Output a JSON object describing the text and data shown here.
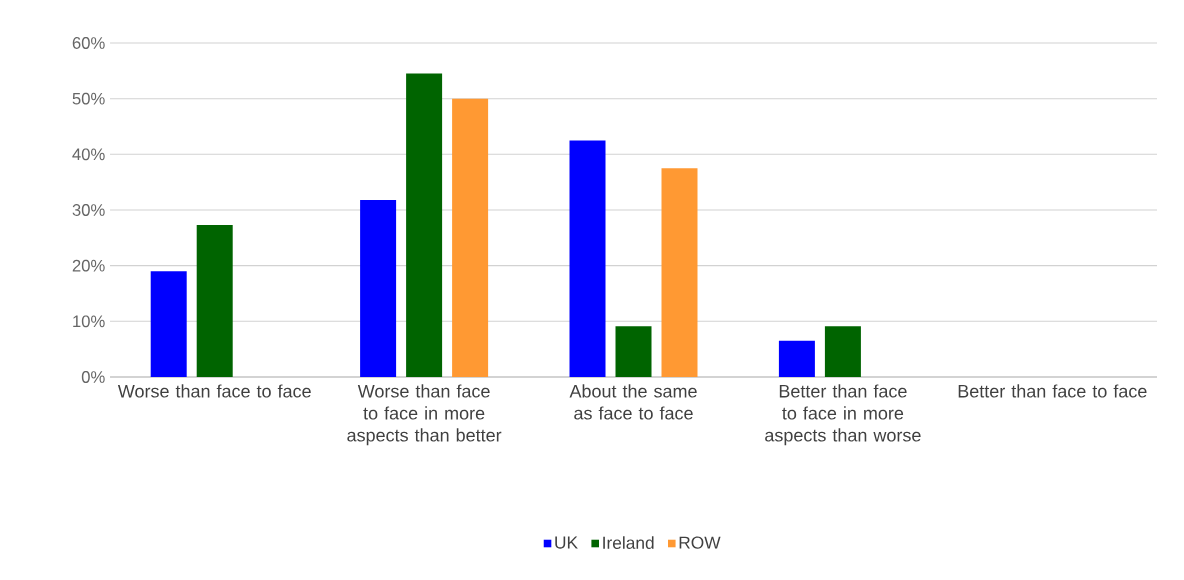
{
  "chart_data": {
    "type": "bar",
    "categories": [
      "Worse than face to face",
      "Worse than face to face in more aspects than better",
      "About the same as face to face",
      "Better than face to face in more aspects than worse",
      "Better than face to face"
    ],
    "series": [
      {
        "name": "UK",
        "color": "#0000ff",
        "values": [
          19,
          31.8,
          42.5,
          6.5,
          0
        ]
      },
      {
        "name": "Ireland",
        "color": "#006400",
        "values": [
          27.3,
          54.5,
          9.1,
          9.1,
          0
        ]
      },
      {
        "name": "ROW",
        "color": "#ff9933",
        "values": [
          0,
          50,
          37.5,
          0,
          0
        ]
      }
    ],
    "ylim": [
      0,
      60
    ],
    "yticks": [
      {
        "value": 0,
        "label": "0%"
      },
      {
        "value": 10,
        "label": "10%"
      },
      {
        "value": 20,
        "label": "20%"
      },
      {
        "value": 30,
        "label": "30%"
      },
      {
        "value": 40,
        "label": "40%"
      },
      {
        "value": 50,
        "label": "50%"
      },
      {
        "value": 60,
        "label": "60%"
      }
    ],
    "grid": "y",
    "legend": "bottom"
  }
}
